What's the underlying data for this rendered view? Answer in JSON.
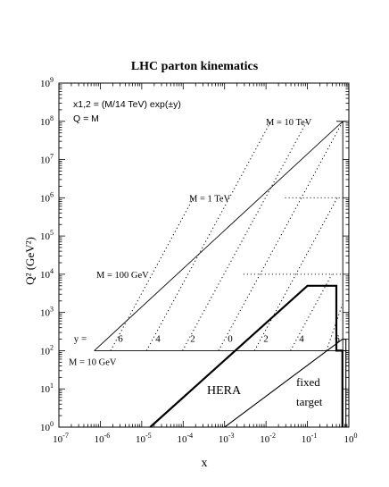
{
  "chart_data": {
    "type": "line",
    "title": "LHC parton kinematics",
    "xlabel": "x",
    "ylabel": "Q² (GeV²)",
    "xscale": "log",
    "yscale": "log",
    "xlim": [
      1e-07,
      1
    ],
    "ylim": [
      1,
      1000000000.0
    ],
    "x_ticks": [
      {
        "v": 1e-07,
        "base": "10",
        "exp": "-7"
      },
      {
        "v": 1e-06,
        "base": "10",
        "exp": "-6"
      },
      {
        "v": 1e-05,
        "base": "10",
        "exp": "-5"
      },
      {
        "v": 0.0001,
        "base": "10",
        "exp": "-4"
      },
      {
        "v": 0.001,
        "base": "10",
        "exp": "-3"
      },
      {
        "v": 0.01,
        "base": "10",
        "exp": "-2"
      },
      {
        "v": 0.1,
        "base": "10",
        "exp": "-1"
      },
      {
        "v": 1,
        "base": "10",
        "exp": "0"
      }
    ],
    "y_ticks": [
      {
        "v": 1,
        "base": "10",
        "exp": "0"
      },
      {
        "v": 10.0,
        "base": "10",
        "exp": "1"
      },
      {
        "v": 100.0,
        "base": "10",
        "exp": "2"
      },
      {
        "v": 1000.0,
        "base": "10",
        "exp": "3"
      },
      {
        "v": 10000.0,
        "base": "10",
        "exp": "4"
      },
      {
        "v": 100000.0,
        "base": "10",
        "exp": "5"
      },
      {
        "v": 1000000.0,
        "base": "10",
        "exp": "6"
      },
      {
        "v": 10000000.0,
        "base": "10",
        "exp": "7"
      },
      {
        "v": 100000000.0,
        "base": "10",
        "exp": "8"
      },
      {
        "v": 1000000000.0,
        "base": "10",
        "exp": "9"
      }
    ],
    "formula_lines": [
      "x1,2 = (M/14 TeV) exp(±y)",
      "Q = M"
    ],
    "mass_lines": [
      {
        "label": "M = 10 GeV",
        "Q2": 100,
        "x_range": [
          7.14e-07,
          1
        ]
      },
      {
        "label": "M = 100 GeV",
        "Q2": 10000,
        "x_range": [
          0.00285,
          0.7
        ]
      },
      {
        "label": "M = 1 TeV",
        "Q2": 1000000,
        "x_range": [
          0.0289,
          0.7
        ]
      },
      {
        "label": "M = 10 TeV",
        "Q2": 100000000,
        "x_range": [
          0.5,
          0.714
        ]
      }
    ],
    "rapidity_labels": [
      "y =",
      "6",
      "4",
      "2",
      "0",
      "2",
      "4",
      "6"
    ],
    "rapidity_lines": [
      {
        "y": 6,
        "points": [
          [
            1.77e-06,
            100
          ],
          [
            1.77e-05,
            10000
          ],
          [
            0.000177,
            1000000
          ]
        ]
      },
      {
        "y": 4,
        "points": [
          [
            1.31e-05,
            100
          ],
          [
            0.000131,
            10000
          ],
          [
            0.00131,
            1000000
          ],
          [
            0.0131,
            100000000
          ]
        ]
      },
      {
        "y": 2,
        "points": [
          [
            9.67e-05,
            100
          ],
          [
            0.000967,
            10000
          ],
          [
            0.00967,
            1000000
          ],
          [
            0.0967,
            100000000
          ]
        ]
      },
      {
        "y": 0,
        "points": [
          [
            0.000714,
            100
          ],
          [
            0.00714,
            10000
          ],
          [
            0.0714,
            1000000
          ],
          [
            0.714,
            100000000
          ]
        ]
      },
      {
        "y": -2,
        "points": [
          [
            0.00528,
            100
          ],
          [
            0.0528,
            10000
          ],
          [
            0.528,
            1000000
          ]
        ]
      },
      {
        "y": -4,
        "points": [
          [
            0.039,
            100
          ],
          [
            0.39,
            10000
          ]
        ]
      },
      {
        "y": -6,
        "points": [
          [
            0.288,
            100
          ],
          [
            0.7,
            1650
          ]
        ]
      }
    ],
    "regions": [
      {
        "label": "HERA",
        "boundary": [
          [
            1.6e-05,
            1
          ],
          [
            0.1,
            5000
          ],
          [
            0.5,
            5000
          ],
          [
            0.5,
            100
          ],
          [
            0.7,
            100
          ],
          [
            0.7,
            1
          ]
        ]
      },
      {
        "label": "fixed target",
        "label_lines": [
          "fixed",
          "target"
        ],
        "boundary": [
          [
            0.001,
            1
          ],
          [
            0.7,
            200
          ],
          [
            0.85,
            200
          ],
          [
            0.85,
            1
          ]
        ]
      }
    ],
    "grid": false
  }
}
